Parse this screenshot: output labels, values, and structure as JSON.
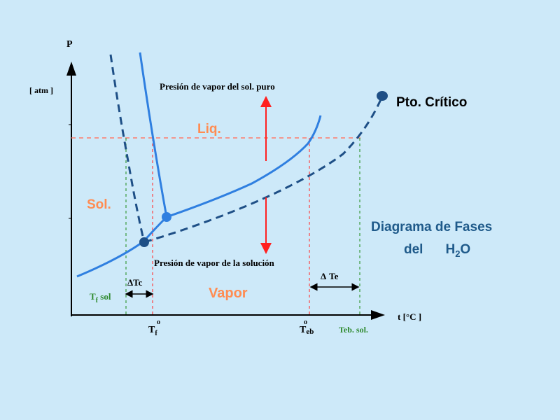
{
  "axes": {
    "y_symbol": "P",
    "y_unit": "[ atm ]",
    "x_unit": "t [°C ]"
  },
  "regions": {
    "solid": "Sol.",
    "liquid": "Liq.",
    "vapor": "Vapor"
  },
  "annotations": {
    "pure_solvent_vapor_pressure": "Presión de vapor del sol. puro",
    "solution_vapor_pressure": "Presión de vapor de la solución",
    "critical_point": "Pto. Crítico",
    "delta_tc_symbol": "Δ",
    "delta_tc_text": "Tc",
    "delta_te_symbol": "Δ",
    "delta_te_text": "Te"
  },
  "x_ticks": {
    "tf_sol_main": "T",
    "tf_sol_sub": "f",
    "tf_sol_tail": " sol",
    "tf_main": "T",
    "tf_sub": "f",
    "tf_sup": "o",
    "teb_main": "T",
    "teb_sub": "eb",
    "teb_sup": "o",
    "teb_sol": "Teb. sol."
  },
  "diagram_title": {
    "line1": "Diagrama de Fases",
    "line2_del": "del",
    "line2_h": "H",
    "line2_sub": "2",
    "line2_o": "O"
  },
  "colors": {
    "background": "#cde9f9",
    "pure_curve": "#2f7fe0",
    "solution_curve": "#1e4f86",
    "reference_line": "#ff7a6a",
    "arrow": "#ff2020",
    "region_label": "#ff8c52",
    "green_label": "#2f8a2f",
    "title": "#1f5a8a",
    "axis": "#000000"
  }
}
